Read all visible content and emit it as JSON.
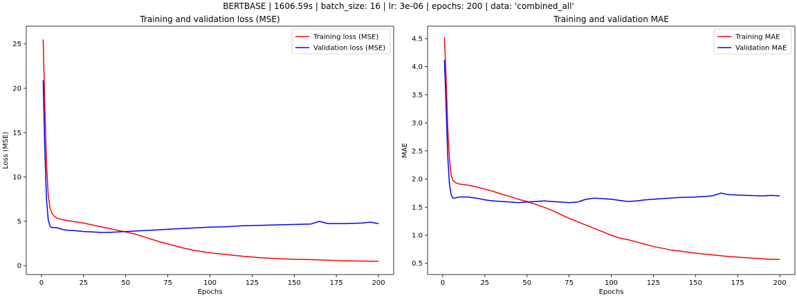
{
  "suptitle": "BERTBASE | 1606.59s | batch_size: 16 | lr: 3e-06 | epochs: 200 | data: 'combined_all'",
  "chart_data": [
    {
      "type": "line",
      "title": "Training and validation loss (MSE)",
      "xlabel": "Epochs",
      "ylabel": "Loss (MSE)",
      "xlim": [
        -9,
        209
      ],
      "ylim": [
        -1.0,
        27.0
      ],
      "xticks": [
        0,
        25,
        50,
        75,
        100,
        125,
        150,
        175,
        200
      ],
      "yticks": [
        0,
        5,
        10,
        15,
        20,
        25
      ],
      "legend": "top-right",
      "series": [
        {
          "name": "Training loss (MSE)",
          "color": "#ff0000",
          "x": [
            1,
            2,
            3,
            4,
            5,
            6,
            7,
            8,
            10,
            12,
            15,
            20,
            25,
            30,
            35,
            40,
            45,
            50,
            55,
            60,
            65,
            70,
            75,
            80,
            85,
            90,
            95,
            100,
            110,
            120,
            130,
            140,
            150,
            160,
            170,
            180,
            190,
            200
          ],
          "y": [
            25.5,
            18.0,
            11.5,
            8.0,
            6.6,
            6.0,
            5.7,
            5.5,
            5.3,
            5.2,
            5.1,
            4.95,
            4.8,
            4.6,
            4.4,
            4.2,
            4.0,
            3.8,
            3.6,
            3.3,
            3.0,
            2.7,
            2.45,
            2.2,
            1.95,
            1.75,
            1.6,
            1.45,
            1.25,
            1.05,
            0.9,
            0.8,
            0.72,
            0.68,
            0.62,
            0.55,
            0.52,
            0.5
          ]
        },
        {
          "name": "Validation loss (MSE)",
          "color": "#0000ff",
          "x": [
            1,
            2,
            3,
            4,
            5,
            6,
            7,
            8,
            10,
            12,
            15,
            20,
            25,
            30,
            35,
            40,
            45,
            50,
            55,
            60,
            65,
            70,
            75,
            80,
            85,
            90,
            95,
            100,
            110,
            120,
            130,
            140,
            150,
            160,
            165,
            170,
            180,
            190,
            195,
            200
          ],
          "y": [
            20.9,
            13.0,
            7.5,
            5.2,
            4.5,
            4.3,
            4.3,
            4.3,
            4.25,
            4.1,
            4.0,
            3.95,
            3.85,
            3.8,
            3.75,
            3.75,
            3.8,
            3.85,
            3.9,
            3.95,
            4.0,
            4.05,
            4.1,
            4.15,
            4.2,
            4.25,
            4.3,
            4.35,
            4.4,
            4.5,
            4.55,
            4.6,
            4.65,
            4.7,
            5.0,
            4.75,
            4.75,
            4.8,
            4.9,
            4.75
          ]
        }
      ]
    },
    {
      "type": "line",
      "title": "Training and validation MAE",
      "xlabel": "Epochs",
      "ylabel": "MAE",
      "xlim": [
        -9,
        209
      ],
      "ylim": [
        0.3,
        4.72
      ],
      "xticks": [
        0,
        25,
        50,
        75,
        100,
        125,
        150,
        175,
        200
      ],
      "yticks": [
        0.5,
        1.0,
        1.5,
        2.0,
        2.5,
        3.0,
        3.5,
        4.0,
        4.5
      ],
      "legend": "top-right",
      "series": [
        {
          "name": "Training MAE",
          "color": "#ff0000",
          "x": [
            1,
            2,
            3,
            4,
            5,
            6,
            7,
            8,
            10,
            15,
            20,
            25,
            30,
            35,
            40,
            45,
            50,
            55,
            60,
            65,
            70,
            75,
            80,
            85,
            90,
            95,
            100,
            105,
            110,
            115,
            120,
            125,
            130,
            135,
            140,
            145,
            150,
            160,
            170,
            180,
            190,
            195,
            200
          ],
          "y": [
            4.52,
            3.8,
            2.9,
            2.35,
            2.08,
            1.98,
            1.95,
            1.93,
            1.91,
            1.89,
            1.86,
            1.82,
            1.78,
            1.73,
            1.69,
            1.64,
            1.6,
            1.55,
            1.5,
            1.44,
            1.37,
            1.3,
            1.24,
            1.18,
            1.12,
            1.06,
            1.0,
            0.95,
            0.92,
            0.88,
            0.84,
            0.8,
            0.77,
            0.74,
            0.72,
            0.7,
            0.68,
            0.65,
            0.62,
            0.6,
            0.58,
            0.57,
            0.57
          ]
        },
        {
          "name": "Validation MAE",
          "color": "#0000ff",
          "x": [
            1,
            2,
            3,
            4,
            5,
            6,
            7,
            8,
            10,
            15,
            20,
            25,
            30,
            35,
            40,
            45,
            50,
            55,
            60,
            65,
            70,
            75,
            80,
            85,
            90,
            95,
            100,
            105,
            110,
            115,
            120,
            125,
            130,
            140,
            150,
            160,
            165,
            170,
            180,
            190,
            195,
            200
          ],
          "y": [
            4.12,
            3.3,
            2.4,
            1.9,
            1.72,
            1.66,
            1.66,
            1.67,
            1.68,
            1.68,
            1.66,
            1.63,
            1.61,
            1.6,
            1.59,
            1.58,
            1.59,
            1.6,
            1.61,
            1.6,
            1.59,
            1.58,
            1.59,
            1.64,
            1.66,
            1.65,
            1.64,
            1.62,
            1.6,
            1.61,
            1.63,
            1.64,
            1.65,
            1.67,
            1.68,
            1.7,
            1.75,
            1.72,
            1.71,
            1.7,
            1.71,
            1.7
          ]
        }
      ]
    }
  ]
}
